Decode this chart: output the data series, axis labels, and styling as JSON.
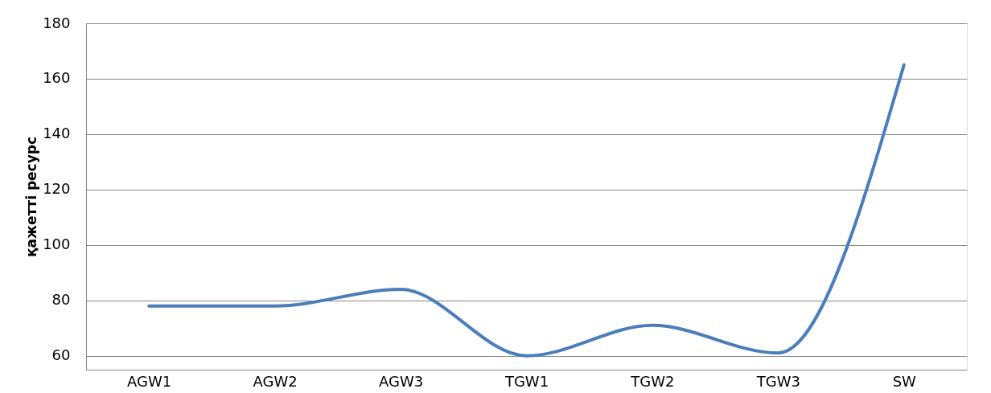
{
  "chart_data": {
    "type": "line",
    "ylabel": "қажетті ресурс",
    "categories": [
      "AGW1",
      "AGW2",
      "AGW3",
      "TGW1",
      "TGW2",
      "TGW3",
      "SW"
    ],
    "series": [
      {
        "color": "#4a7ebb",
        "values": [
          78,
          78,
          84,
          60,
          71,
          61,
          165
        ]
      }
    ],
    "ylim": [
      55,
      180
    ],
    "yticks": [
      60,
      80,
      100,
      120,
      140,
      160,
      180
    ],
    "grid": "y",
    "marker": "none",
    "line_style": "solid"
  }
}
